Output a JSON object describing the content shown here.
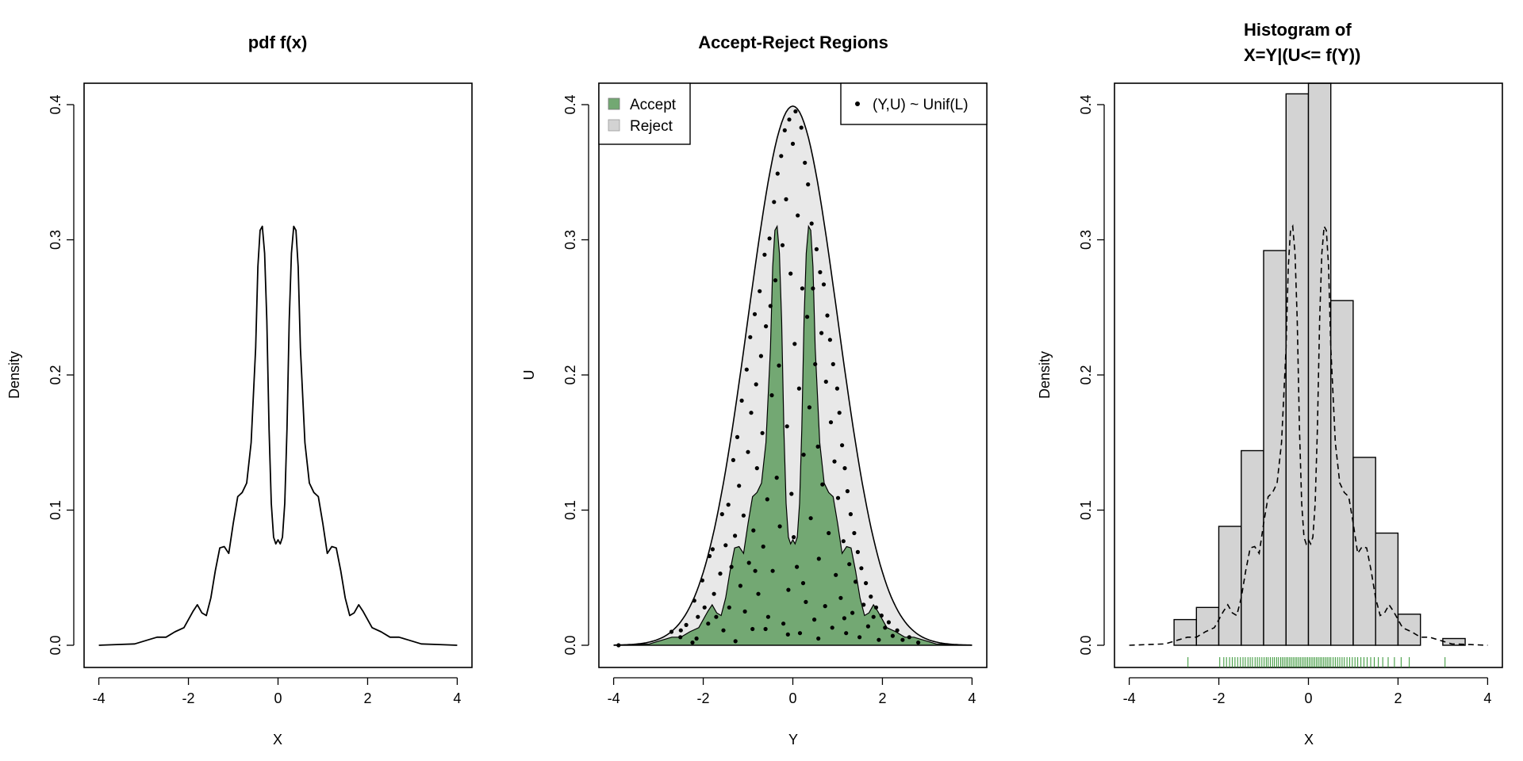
{
  "colors": {
    "axis": "#000000",
    "accept_fill": "#73a873",
    "reject_fill": "#e8e8e8",
    "hist_fill": "#d3d3d3",
    "rug": "#228b22",
    "points": "#000000"
  },
  "chart_data": [
    {
      "type": "line",
      "title": "pdf f(x)",
      "xlabel": "X",
      "ylabel": "Density",
      "xlim": [
        -4,
        4
      ],
      "ylim": [
        0,
        0.41
      ],
      "xticks": [
        -4,
        -2,
        0,
        2,
        4
      ],
      "yticks": [
        0.0,
        0.1,
        0.2,
        0.3,
        0.4
      ],
      "xtick_labels": [
        "-4",
        "-2",
        "0",
        "2",
        "4"
      ],
      "ytick_labels": [
        "0.0",
        "0.1",
        "0.2",
        "0.3",
        "0.4"
      ],
      "grid": false,
      "series": [
        {
          "style": "solid",
          "x": [
            -4.0,
            -3.6,
            -3.2,
            -2.9,
            -2.7,
            -2.5,
            -2.3,
            -2.1,
            -1.9,
            -1.8,
            -1.7,
            -1.6,
            -1.5,
            -1.4,
            -1.3,
            -1.2,
            -1.1,
            -1.0,
            -0.9,
            -0.8,
            -0.7,
            -0.6,
            -0.5,
            -0.45,
            -0.4,
            -0.35,
            -0.3,
            -0.25,
            -0.2,
            -0.15,
            -0.1,
            -0.05,
            0.0,
            0.05,
            0.1,
            0.15,
            0.2,
            0.25,
            0.3,
            0.35,
            0.4,
            0.45,
            0.5,
            0.6,
            0.7,
            0.8,
            0.9,
            1.0,
            1.1,
            1.2,
            1.3,
            1.4,
            1.5,
            1.6,
            1.7,
            1.8,
            1.9,
            2.1,
            2.3,
            2.5,
            2.7,
            2.9,
            3.2,
            3.6,
            4.0
          ],
          "y": [
            0.0,
            0.0005,
            0.001,
            0.004,
            0.006,
            0.006,
            0.01,
            0.013,
            0.025,
            0.03,
            0.024,
            0.022,
            0.035,
            0.055,
            0.072,
            0.073,
            0.068,
            0.09,
            0.11,
            0.113,
            0.12,
            0.15,
            0.22,
            0.28,
            0.307,
            0.31,
            0.29,
            0.24,
            0.16,
            0.105,
            0.08,
            0.075,
            0.078,
            0.075,
            0.08,
            0.105,
            0.16,
            0.24,
            0.29,
            0.31,
            0.307,
            0.28,
            0.22,
            0.15,
            0.12,
            0.113,
            0.11,
            0.09,
            0.068,
            0.073,
            0.072,
            0.055,
            0.035,
            0.022,
            0.024,
            0.03,
            0.025,
            0.013,
            0.01,
            0.006,
            0.006,
            0.004,
            0.001,
            0.0005,
            0.0
          ]
        }
      ]
    },
    {
      "type": "area",
      "title": "Accept-Reject Regions",
      "xlabel": "Y",
      "ylabel": "U",
      "xlim": [
        -4,
        4
      ],
      "ylim": [
        0,
        0.41
      ],
      "xticks": [
        -4,
        -2,
        0,
        2,
        4
      ],
      "yticks": [
        0.0,
        0.1,
        0.2,
        0.3,
        0.4
      ],
      "xtick_labels": [
        "-4",
        "-2",
        "0",
        "2",
        "4"
      ],
      "ytick_labels": [
        "0.0",
        "0.1",
        "0.2",
        "0.3",
        "0.4"
      ],
      "grid": false,
      "legend_left": {
        "position": "top-left",
        "entries": [
          {
            "label": "Accept",
            "color": "#73a873"
          },
          {
            "label": "Reject",
            "color": "#d3d3d3"
          }
        ]
      },
      "legend_right": {
        "position": "top-right",
        "entries": [
          {
            "label": "(Y,U) ~ Unif(L)",
            "marker": "point"
          }
        ]
      },
      "envelope": "normal density, mean 0, sd 1, peak 0.399",
      "accept_region": "area under the pdf f(x) curve of the first panel",
      "points": [
        [
          -3.89,
          0.0
        ],
        [
          -2.71,
          0.01
        ],
        [
          -2.5,
          0.011
        ],
        [
          -2.38,
          0.015
        ],
        [
          -2.51,
          0.006
        ],
        [
          -2.24,
          0.002
        ],
        [
          -2.2,
          0.033
        ],
        [
          -2.12,
          0.021
        ],
        [
          -2.02,
          0.048
        ],
        [
          -2.15,
          0.005
        ],
        [
          -1.97,
          0.028
        ],
        [
          -1.89,
          0.016
        ],
        [
          -1.86,
          0.066
        ],
        [
          -1.79,
          0.071
        ],
        [
          -1.76,
          0.038
        ],
        [
          -1.71,
          0.021
        ],
        [
          -1.62,
          0.053
        ],
        [
          -1.58,
          0.097
        ],
        [
          -1.55,
          0.011
        ],
        [
          -1.5,
          0.074
        ],
        [
          -1.44,
          0.104
        ],
        [
          -1.42,
          0.028
        ],
        [
          -1.37,
          0.058
        ],
        [
          -1.33,
          0.137
        ],
        [
          -1.29,
          0.081
        ],
        [
          -1.28,
          0.003
        ],
        [
          -1.24,
          0.154
        ],
        [
          -1.2,
          0.118
        ],
        [
          -1.17,
          0.044
        ],
        [
          -1.14,
          0.181
        ],
        [
          -1.1,
          0.096
        ],
        [
          -1.07,
          0.025
        ],
        [
          -1.03,
          0.204
        ],
        [
          -1.0,
          0.143
        ],
        [
          -0.98,
          0.061
        ],
        [
          -0.95,
          0.228
        ],
        [
          -0.93,
          0.172
        ],
        [
          -0.9,
          0.012
        ],
        [
          -0.88,
          0.085
        ],
        [
          -0.85,
          0.245
        ],
        [
          -0.82,
          0.193
        ],
        [
          -0.8,
          0.131
        ],
        [
          -0.77,
          0.038
        ],
        [
          -0.74,
          0.262
        ],
        [
          -0.71,
          0.214
        ],
        [
          -0.68,
          0.157
        ],
        [
          -0.66,
          0.073
        ],
        [
          -0.63,
          0.289
        ],
        [
          -0.6,
          0.236
        ],
        [
          -0.57,
          0.108
        ],
        [
          -0.55,
          0.021
        ],
        [
          -0.52,
          0.301
        ],
        [
          -0.5,
          0.251
        ],
        [
          -0.47,
          0.185
        ],
        [
          -0.45,
          0.055
        ],
        [
          -0.42,
          0.328
        ],
        [
          -0.39,
          0.27
        ],
        [
          -0.36,
          0.124
        ],
        [
          -0.34,
          0.349
        ],
        [
          -0.31,
          0.207
        ],
        [
          -0.29,
          0.088
        ],
        [
          -0.26,
          0.362
        ],
        [
          -0.23,
          0.296
        ],
        [
          -0.21,
          0.016
        ],
        [
          -0.18,
          0.381
        ],
        [
          -0.15,
          0.33
        ],
        [
          -0.13,
          0.162
        ],
        [
          -0.1,
          0.041
        ],
        [
          -0.08,
          0.389
        ],
        [
          -0.05,
          0.275
        ],
        [
          -0.03,
          0.112
        ],
        [
          0.0,
          0.371
        ],
        [
          0.02,
          0.08
        ],
        [
          0.04,
          0.223
        ],
        [
          0.06,
          0.395
        ],
        [
          0.09,
          0.058
        ],
        [
          0.11,
          0.318
        ],
        [
          0.14,
          0.19
        ],
        [
          0.16,
          0.009
        ],
        [
          0.19,
          0.383
        ],
        [
          0.21,
          0.264
        ],
        [
          0.24,
          0.141
        ],
        [
          0.27,
          0.357
        ],
        [
          0.29,
          0.032
        ],
        [
          0.32,
          0.243
        ],
        [
          0.34,
          0.341
        ],
        [
          0.37,
          0.176
        ],
        [
          0.4,
          0.094
        ],
        [
          0.42,
          0.312
        ],
        [
          0.45,
          0.264
        ],
        [
          0.48,
          0.019
        ],
        [
          0.5,
          0.208
        ],
        [
          0.53,
          0.293
        ],
        [
          0.56,
          0.147
        ],
        [
          0.58,
          0.064
        ],
        [
          0.61,
          0.276
        ],
        [
          0.64,
          0.231
        ],
        [
          0.66,
          0.119
        ],
        [
          0.69,
          0.267
        ],
        [
          0.72,
          0.029
        ],
        [
          0.74,
          0.195
        ],
        [
          0.77,
          0.244
        ],
        [
          0.8,
          0.083
        ],
        [
          0.83,
          0.226
        ],
        [
          0.85,
          0.165
        ],
        [
          0.88,
          0.013
        ],
        [
          0.9,
          0.208
        ],
        [
          0.93,
          0.136
        ],
        [
          0.96,
          0.052
        ],
        [
          0.99,
          0.19
        ],
        [
          1.01,
          0.109
        ],
        [
          1.04,
          0.172
        ],
        [
          1.07,
          0.035
        ],
        [
          1.1,
          0.148
        ],
        [
          1.13,
          0.077
        ],
        [
          1.16,
          0.131
        ],
        [
          1.19,
          0.009
        ],
        [
          1.22,
          0.114
        ],
        [
          1.26,
          0.06
        ],
        [
          1.29,
          0.097
        ],
        [
          1.33,
          0.024
        ],
        [
          1.37,
          0.083
        ],
        [
          1.4,
          0.047
        ],
        [
          1.45,
          0.069
        ],
        [
          1.49,
          0.006
        ],
        [
          1.53,
          0.057
        ],
        [
          1.58,
          0.03
        ],
        [
          1.63,
          0.046
        ],
        [
          1.68,
          0.014
        ],
        [
          1.74,
          0.036
        ],
        [
          1.8,
          0.021
        ],
        [
          1.86,
          0.028
        ],
        [
          1.92,
          0.004
        ],
        [
          1.98,
          0.022
        ],
        [
          2.06,
          0.013
        ],
        [
          2.14,
          0.017
        ],
        [
          2.23,
          0.007
        ],
        [
          2.33,
          0.011
        ],
        [
          2.45,
          0.004
        ],
        [
          2.6,
          0.006
        ],
        [
          2.8,
          0.002
        ],
        [
          -0.61,
          0.012
        ],
        [
          0.57,
          0.005
        ],
        [
          -0.11,
          0.008
        ],
        [
          0.23,
          0.046
        ],
        [
          -0.84,
          0.055
        ],
        [
          1.15,
          0.02
        ]
      ]
    },
    {
      "type": "bar",
      "title_lines": [
        "Histogram of",
        "X=Y|(U<= f(Y))"
      ],
      "xlabel": "X",
      "ylabel": "Density",
      "xlim": [
        -4,
        4
      ],
      "ylim": [
        0,
        0.41
      ],
      "xticks": [
        -4,
        -2,
        0,
        2,
        4
      ],
      "yticks": [
        0.0,
        0.1,
        0.2,
        0.3,
        0.4
      ],
      "xtick_labels": [
        "-4",
        "-2",
        "0",
        "2",
        "4"
      ],
      "ytick_labels": [
        "0.0",
        "0.1",
        "0.2",
        "0.3",
        "0.4"
      ],
      "grid": false,
      "bin_edges": [
        -3.0,
        -2.5,
        -2.0,
        -1.5,
        -1.0,
        -0.5,
        0.0,
        0.5,
        1.0,
        1.5,
        2.0,
        2.5,
        3.0,
        3.5
      ],
      "values": [
        0.019,
        0.028,
        0.088,
        0.144,
        0.292,
        0.408,
        0.416,
        0.255,
        0.139,
        0.083,
        0.023,
        0.0,
        0.005
      ],
      "overlay": "pdf f(x), dashed line",
      "rug": [
        -2.69,
        -1.98,
        -1.89,
        -1.83,
        -1.76,
        -1.7,
        -1.64,
        -1.58,
        -1.52,
        -1.46,
        -1.41,
        -1.35,
        -1.3,
        -1.25,
        -1.19,
        -1.14,
        -1.09,
        -1.04,
        -0.99,
        -0.94,
        -0.9,
        -0.85,
        -0.8,
        -0.76,
        -0.71,
        -0.67,
        -0.62,
        -0.58,
        -0.54,
        -0.5,
        -0.46,
        -0.42,
        -0.38,
        -0.34,
        -0.3,
        -0.26,
        -0.22,
        -0.18,
        -0.14,
        -0.1,
        -0.06,
        -0.02,
        0.02,
        0.06,
        0.1,
        0.14,
        0.18,
        0.22,
        0.26,
        0.3,
        0.34,
        0.38,
        0.42,
        0.46,
        0.5,
        0.55,
        0.6,
        0.65,
        0.7,
        0.75,
        0.8,
        0.86,
        0.92,
        0.98,
        1.04,
        1.1,
        1.17,
        1.24,
        1.31,
        1.39,
        1.47,
        1.56,
        1.66,
        1.78,
        1.92,
        2.07,
        2.25,
        3.05
      ]
    }
  ]
}
